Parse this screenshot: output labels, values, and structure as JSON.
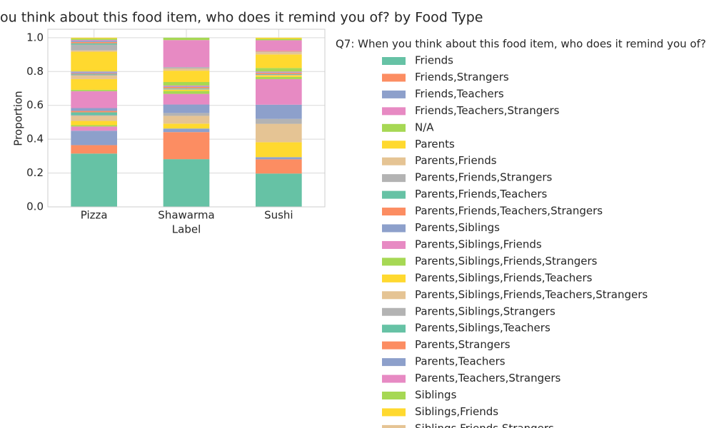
{
  "chart_data": {
    "type": "stacked_bar",
    "title": "ou think about this food item, who does it remind you of? by Food Type",
    "x_label": "Label",
    "y_label": "Proportion",
    "legend_title": "Q7: When you think about this food item, who does it remind you of?",
    "categories": [
      "Pizza",
      "Shawarma",
      "Sushi"
    ],
    "ylim": [
      0,
      1.05
    ],
    "yticks": [
      {
        "value": 0,
        "label": "0.0"
      },
      {
        "value": 0.2,
        "label": "0.2"
      },
      {
        "value": 0.4,
        "label": "0.4"
      },
      {
        "value": 0.6,
        "label": "0.6"
      },
      {
        "value": 0.8,
        "label": "0.8"
      },
      {
        "value": 1,
        "label": "1.0"
      }
    ],
    "grid": true,
    "series": [
      {
        "name": "Friends",
        "color": "#66c2a5",
        "values": [
          0.315,
          0.282,
          0.197
        ]
      },
      {
        "name": "Friends,Strangers",
        "color": "#fc8d62",
        "values": [
          0.05,
          0.16,
          0.084
        ]
      },
      {
        "name": "Friends,Teachers",
        "color": "#8da0cb",
        "values": [
          0.085,
          0.021,
          0.013
        ]
      },
      {
        "name": "Friends,Teachers,Strangers",
        "color": "#e78ac3",
        "values": [
          0.025,
          0,
          0
        ]
      },
      {
        "name": "N/A",
        "color": "#a6d854",
        "values": [
          0.008,
          0,
          0
        ]
      },
      {
        "name": "Parents",
        "color": "#ffd92f",
        "values": [
          0.025,
          0.029,
          0.088
        ]
      },
      {
        "name": "Parents,Friends",
        "color": "#e5c494",
        "values": [
          0.03,
          0.046,
          0.109
        ]
      },
      {
        "name": "Parents,Friends,Strangers",
        "color": "#b3b3b3",
        "values": [
          0.004,
          0.017,
          0.029
        ]
      },
      {
        "name": "Parents,Friends,Teachers",
        "color": "#66c2a5",
        "values": [
          0.017,
          0,
          0
        ]
      },
      {
        "name": "Parents,Friends,Teachers,Strangers",
        "color": "#fc8d62",
        "values": [
          0.008,
          0,
          0
        ]
      },
      {
        "name": "Parents,Siblings",
        "color": "#8da0cb",
        "values": [
          0.017,
          0.05,
          0.084
        ]
      },
      {
        "name": "Parents,Siblings,Friends",
        "color": "#e78ac3",
        "values": [
          0.1,
          0.063,
          0.151
        ]
      },
      {
        "name": "Parents,Siblings,Friends,Strangers",
        "color": "#a6d854",
        "values": [
          0.008,
          0.017,
          0.013
        ]
      },
      {
        "name": "Parents,Siblings,Friends,Teachers",
        "color": "#ffd92f",
        "values": [
          0.063,
          0.008,
          0.008
        ]
      },
      {
        "name": "Parents,Siblings,Friends,Teachers,Strangers",
        "color": "#e5c494",
        "values": [
          0.021,
          0,
          0.004
        ]
      },
      {
        "name": "Parents,Siblings,Strangers",
        "color": "#b3b3b3",
        "values": [
          0.004,
          0.004,
          0
        ]
      },
      {
        "name": "Parents,Siblings,Teachers",
        "color": "#66c2a5",
        "values": [
          0.004,
          0.004,
          0.004
        ]
      },
      {
        "name": "Parents,Strangers",
        "color": "#fc8d62",
        "values": [
          0.004,
          0.008,
          0.008
        ]
      },
      {
        "name": "Parents,Teachers",
        "color": "#8da0cb",
        "values": [
          0.008,
          0.004,
          0.004
        ]
      },
      {
        "name": "Parents,Teachers,Strangers",
        "color": "#e78ac3",
        "values": [
          0.004,
          0.004,
          0.004
        ]
      },
      {
        "name": "Siblings",
        "color": "#a6d854",
        "values": [
          0.004,
          0.021,
          0.021
        ]
      },
      {
        "name": "Siblings,Friends",
        "color": "#ffd92f",
        "values": [
          0.113,
          0.067,
          0.08
        ]
      },
      {
        "name": "Siblings,Friends,Strangers",
        "color": "#e5c494",
        "values": [
          0.008,
          0.013,
          0.013
        ]
      },
      {
        "name": null,
        "color": "#b3b3b3",
        "values": [
          0.034,
          0.008,
          0.004
        ]
      },
      {
        "name": null,
        "color": "#66c2a5",
        "values": [
          0.008,
          0,
          0
        ]
      },
      {
        "name": null,
        "color": "#fc8d62",
        "values": [
          0.008,
          0,
          0.004
        ]
      },
      {
        "name": null,
        "color": "#8da0cb",
        "values": [
          0.008,
          0,
          0
        ]
      },
      {
        "name": null,
        "color": "#e78ac3",
        "values": [
          0.004,
          0.16,
          0.063
        ]
      },
      {
        "name": null,
        "color": "#a6d854",
        "values": [
          0.008,
          0.014,
          0.008
        ]
      },
      {
        "name": null,
        "color": "#ffd92f",
        "values": [
          0.005,
          0,
          0.007
        ]
      }
    ]
  }
}
